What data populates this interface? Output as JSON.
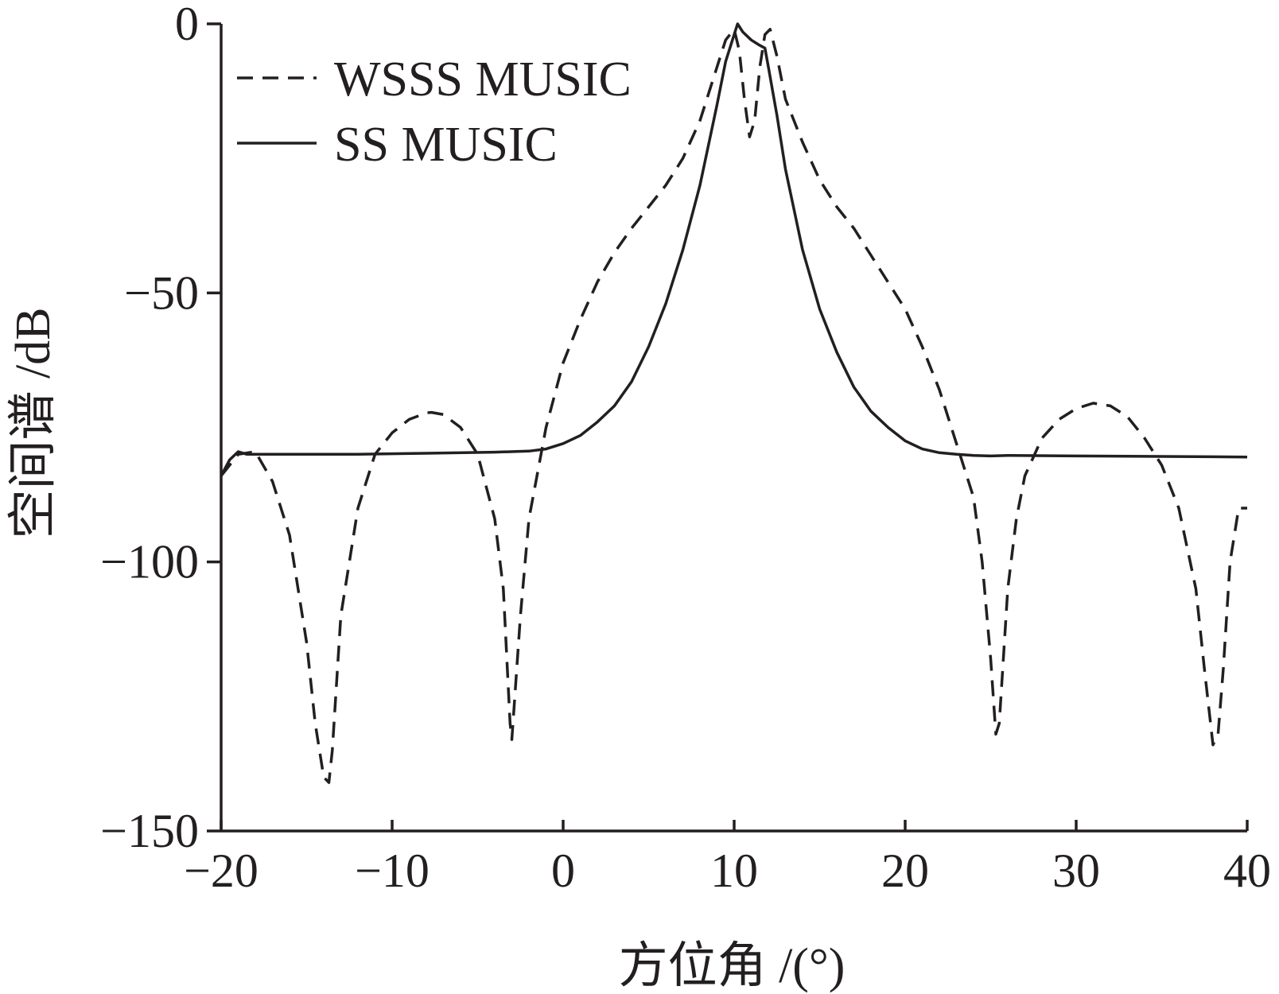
{
  "chart_data": {
    "type": "line",
    "title": "",
    "xlabel": "方位角 /(°)",
    "ylabel": "空间谱 /dB",
    "xlim": [
      -20,
      40
    ],
    "ylim": [
      -150,
      0
    ],
    "xticks": [
      -20,
      -10,
      0,
      10,
      20,
      30,
      40
    ],
    "yticks": [
      0,
      -50,
      -100,
      -150
    ],
    "xtick_labels": [
      "−20",
      "−10",
      "0",
      "10",
      "20",
      "30",
      "40"
    ],
    "ytick_labels": [
      "0",
      "−50",
      "−100",
      "−150"
    ],
    "legend_position": "top-left",
    "grid": false,
    "series": [
      {
        "name": "WSSS MUSIC",
        "style": "dashed",
        "color": "#231f20",
        "x": [
          -20,
          -19,
          -18,
          -17,
          -16,
          -15,
          -14.5,
          -14,
          -13.7,
          -13.5,
          -13,
          -12,
          -11,
          -10,
          -9,
          -8,
          -7.7,
          -7,
          -6,
          -5,
          -4,
          -3.5,
          -3.1,
          -3.0,
          -2.5,
          -2,
          -1,
          0,
          1,
          2,
          3,
          4,
          5,
          6,
          7,
          8,
          9,
          9.5,
          10,
          10.3,
          10.6,
          10.9,
          11.2,
          11.5,
          11.8,
          12.1,
          12.5,
          13,
          14,
          15,
          16,
          17,
          18,
          19,
          20,
          21,
          22,
          23,
          24,
          24.5,
          25,
          25.3,
          25.5,
          25.7,
          26,
          26.5,
          27,
          28,
          29,
          30,
          31,
          32,
          33,
          34,
          35,
          36,
          37,
          37.5,
          38,
          38.3,
          38.6,
          39,
          39.5,
          40
        ],
        "values": [
          -84,
          -80,
          -79.5,
          -85,
          -95,
          -115,
          -130,
          -140,
          -141,
          -135,
          -110,
          -90,
          -80,
          -76,
          -73.5,
          -72.3,
          -72.2,
          -72.6,
          -75,
          -80,
          -92,
          -105,
          -130,
          -133,
          -110,
          -92,
          -75,
          -63,
          -55,
          -48,
          -42.5,
          -38,
          -34,
          -30,
          -25,
          -18,
          -8,
          -3,
          -1,
          -5,
          -14,
          -21,
          -18,
          -8,
          -2,
          -1,
          -6,
          -14,
          -22,
          -29,
          -34,
          -38,
          -43,
          -48,
          -53,
          -60,
          -68,
          -78,
          -88,
          -100,
          -118,
          -132,
          -130,
          -120,
          -105,
          -92,
          -84,
          -77,
          -73.5,
          -71.5,
          -70.5,
          -71,
          -73,
          -77,
          -82,
          -90,
          -105,
          -120,
          -134,
          -132,
          -120,
          -100,
          -90,
          -90
        ]
      },
      {
        "name": "SS MUSIC",
        "style": "solid",
        "color": "#231f20",
        "x": [
          -20,
          -19.5,
          -19,
          -18.5,
          -18,
          -16,
          -12,
          -8,
          -4,
          -2,
          -1,
          0,
          1,
          2,
          3,
          4,
          5,
          6,
          7,
          8,
          9,
          9.5,
          10,
          10.2,
          10.5,
          11,
          11.5,
          11.8,
          12,
          12.5,
          13,
          14,
          15,
          16,
          17,
          18,
          19,
          20,
          21,
          22,
          23,
          24,
          25,
          26,
          30,
          35,
          40
        ],
        "values": [
          -84,
          -81,
          -79.5,
          -80,
          -80,
          -80,
          -80,
          -79.8,
          -79.6,
          -79.4,
          -79,
          -78,
          -76.5,
          -74,
          -71,
          -66.5,
          -60,
          -52,
          -42,
          -30,
          -15,
          -7,
          -2,
          0,
          -1.5,
          -3,
          -4,
          -4.5,
          -8,
          -17,
          -27,
          -42,
          -53,
          -61,
          -67.5,
          -72,
          -75,
          -77.5,
          -79,
          -79.7,
          -80,
          -80.2,
          -80.3,
          -80.2,
          -80.3,
          -80.4,
          -80.5
        ]
      }
    ]
  }
}
